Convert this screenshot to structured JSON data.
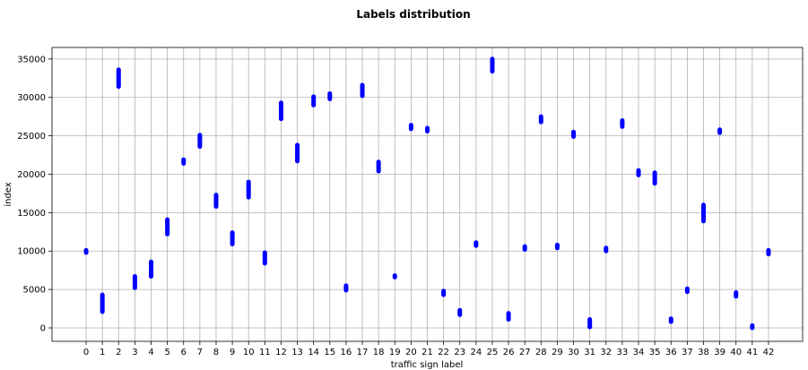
{
  "chart_data": {
    "type": "scatter",
    "title": "Labels distribution",
    "xlabel": "traffic sign label",
    "ylabel": "index",
    "xlim": [
      -2.1,
      44.1
    ],
    "ylim": [
      -1750,
      36500
    ],
    "x_ticks": [
      0,
      1,
      2,
      3,
      4,
      5,
      6,
      7,
      8,
      9,
      10,
      11,
      12,
      13,
      14,
      15,
      16,
      17,
      18,
      19,
      20,
      21,
      22,
      23,
      24,
      25,
      26,
      27,
      28,
      29,
      30,
      31,
      32,
      33,
      34,
      35,
      36,
      37,
      38,
      39,
      40,
      41,
      42
    ],
    "x_tick_labels": [
      "0",
      "1",
      "2",
      "3",
      "4",
      "5",
      "6",
      "7",
      "8",
      "9",
      "10",
      "11",
      "12",
      "13",
      "14",
      "15",
      "16",
      "17",
      "18",
      "19",
      "20",
      "21",
      "22",
      "23",
      "24",
      "25",
      "26",
      "27",
      "28",
      "29",
      "30",
      "31",
      "32",
      "33",
      "34",
      "35",
      "36",
      "37",
      "38",
      "39",
      "40",
      "41",
      "42"
    ],
    "y_ticks": [
      0,
      5000,
      10000,
      15000,
      20000,
      25000,
      30000,
      35000
    ],
    "y_tick_labels": [
      "0",
      "5000",
      "10000",
      "15000",
      "20000",
      "25000",
      "30000",
      "35000"
    ],
    "grid": true,
    "marker_color": "#0000ff",
    "series": [
      {
        "values": [
          {
            "x": 0,
            "ymin": 9800,
            "ymax": 10100
          },
          {
            "x": 1,
            "ymin": 2100,
            "ymax": 4300
          },
          {
            "x": 2,
            "ymin": 31400,
            "ymax": 33600
          },
          {
            "x": 3,
            "ymin": 5200,
            "ymax": 6700
          },
          {
            "x": 4,
            "ymin": 6700,
            "ymax": 8600
          },
          {
            "x": 5,
            "ymin": 12200,
            "ymax": 14100
          },
          {
            "x": 6,
            "ymin": 21400,
            "ymax": 21900
          },
          {
            "x": 7,
            "ymin": 23600,
            "ymax": 25100
          },
          {
            "x": 8,
            "ymin": 15800,
            "ymax": 17300
          },
          {
            "x": 9,
            "ymin": 10900,
            "ymax": 12400
          },
          {
            "x": 10,
            "ymin": 17000,
            "ymax": 19000
          },
          {
            "x": 11,
            "ymin": 8400,
            "ymax": 9800
          },
          {
            "x": 12,
            "ymin": 27200,
            "ymax": 29300
          },
          {
            "x": 13,
            "ymin": 21700,
            "ymax": 23800
          },
          {
            "x": 14,
            "ymin": 29000,
            "ymax": 30100
          },
          {
            "x": 15,
            "ymin": 29800,
            "ymax": 30500
          },
          {
            "x": 16,
            "ymin": 4900,
            "ymax": 5500
          },
          {
            "x": 17,
            "ymin": 30200,
            "ymax": 31600
          },
          {
            "x": 18,
            "ymin": 20400,
            "ymax": 21600
          },
          {
            "x": 19,
            "ymin": 6600,
            "ymax": 6800
          },
          {
            "x": 20,
            "ymin": 25900,
            "ymax": 26400
          },
          {
            "x": 21,
            "ymin": 25600,
            "ymax": 26000
          },
          {
            "x": 22,
            "ymin": 4300,
            "ymax": 4800
          },
          {
            "x": 23,
            "ymin": 1700,
            "ymax": 2300
          },
          {
            "x": 24,
            "ymin": 10700,
            "ymax": 11100
          },
          {
            "x": 25,
            "ymin": 33400,
            "ymax": 35000
          },
          {
            "x": 26,
            "ymin": 1100,
            "ymax": 1900
          },
          {
            "x": 27,
            "ymin": 10200,
            "ymax": 10600
          },
          {
            "x": 28,
            "ymin": 26800,
            "ymax": 27500
          },
          {
            "x": 29,
            "ymin": 10400,
            "ymax": 10800
          },
          {
            "x": 30,
            "ymin": 24900,
            "ymax": 25500
          },
          {
            "x": 31,
            "ymin": 100,
            "ymax": 1100
          },
          {
            "x": 32,
            "ymin": 10000,
            "ymax": 10400
          },
          {
            "x": 33,
            "ymin": 26200,
            "ymax": 27000
          },
          {
            "x": 34,
            "ymin": 19900,
            "ymax": 20500
          },
          {
            "x": 35,
            "ymin": 18800,
            "ymax": 20200
          },
          {
            "x": 36,
            "ymin": 800,
            "ymax": 1200
          },
          {
            "x": 37,
            "ymin": 4700,
            "ymax": 5100
          },
          {
            "x": 38,
            "ymin": 13900,
            "ymax": 16000
          },
          {
            "x": 39,
            "ymin": 25400,
            "ymax": 25800
          },
          {
            "x": 40,
            "ymin": 4100,
            "ymax": 4600
          },
          {
            "x": 41,
            "ymin": 0,
            "ymax": 300
          },
          {
            "x": 42,
            "ymin": 9600,
            "ymax": 10100
          }
        ]
      }
    ]
  }
}
